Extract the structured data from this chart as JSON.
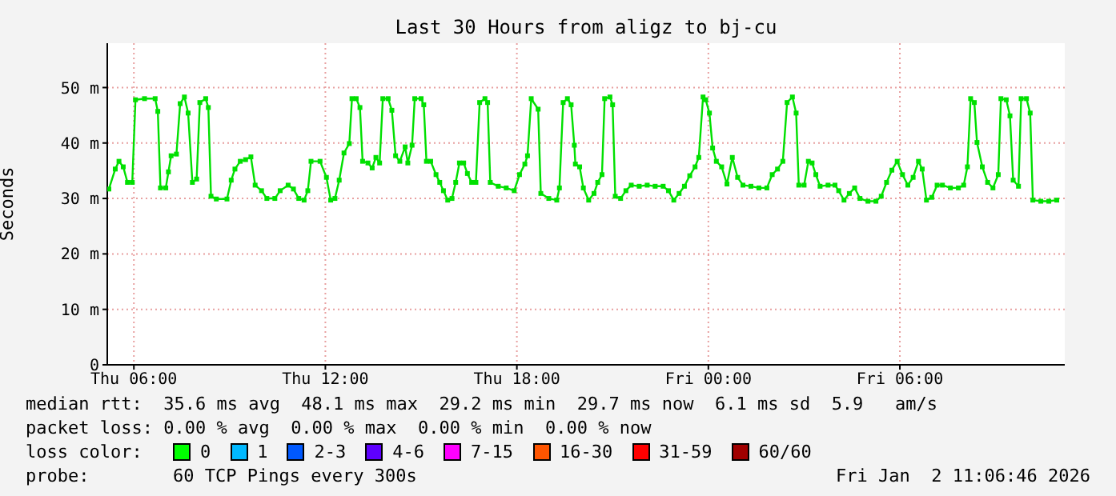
{
  "chart_data": {
    "type": "line",
    "title": "Last 30 Hours from aligz to bj-cu",
    "ylabel": "Seconds",
    "xlim": [
      "2026-01-01T05:10",
      "2026-01-02T11:10"
    ],
    "xticks": [
      {
        "value": "2026-01-01T06:00",
        "label": "Thu 06:00"
      },
      {
        "value": "2026-01-01T12:00",
        "label": "Thu 12:00"
      },
      {
        "value": "2026-01-01T18:00",
        "label": "Thu 18:00"
      },
      {
        "value": "2026-01-02T00:00",
        "label": "Fri 00:00"
      },
      {
        "value": "2026-01-02T06:00",
        "label": "Fri 06:00"
      }
    ],
    "ylim": [
      0,
      58
    ],
    "yticks": [
      0,
      {
        "value": 10,
        "label": "10 m"
      },
      {
        "value": 20,
        "label": "20 m"
      },
      {
        "value": 30,
        "label": "30 m"
      },
      {
        "value": 40,
        "label": "40 m"
      },
      {
        "value": 50,
        "label": "50 m"
      }
    ],
    "grid": true,
    "legend": false,
    "marker": "square",
    "line_style": "solid",
    "series": [
      {
        "color": "#00e000",
        "x": [
          "2026-01-01T05:13",
          "2026-01-01T05:25",
          "2026-01-01T05:32",
          "2026-01-01T05:40",
          "2026-01-01T05:48",
          "2026-01-01T05:57",
          "2026-01-01T06:03",
          "2026-01-01T06:20",
          "2026-01-01T06:40",
          "2026-01-01T06:45",
          "2026-01-01T06:50",
          "2026-01-01T07:00",
          "2026-01-01T07:05",
          "2026-01-01T07:10",
          "2026-01-01T07:20",
          "2026-01-01T07:27",
          "2026-01-01T07:35",
          "2026-01-01T07:42",
          "2026-01-01T07:50",
          "2026-01-01T07:58",
          "2026-01-01T08:04",
          "2026-01-01T08:15",
          "2026-01-01T08:20",
          "2026-01-01T08:25",
          "2026-01-01T08:35",
          "2026-01-01T08:55",
          "2026-01-01T09:03",
          "2026-01-01T09:10",
          "2026-01-01T09:20",
          "2026-01-01T09:30",
          "2026-01-01T09:40",
          "2026-01-01T09:48",
          "2026-01-01T10:00",
          "2026-01-01T10:10",
          "2026-01-01T10:25",
          "2026-01-01T10:35",
          "2026-01-01T10:50",
          "2026-01-01T11:00",
          "2026-01-01T11:10",
          "2026-01-01T11:20",
          "2026-01-01T11:27",
          "2026-01-01T11:33",
          "2026-01-01T11:50",
          "2026-01-01T12:02",
          "2026-01-01T12:10",
          "2026-01-01T12:18",
          "2026-01-01T12:26",
          "2026-01-01T12:35",
          "2026-01-01T12:45",
          "2026-01-01T12:50",
          "2026-01-01T12:58",
          "2026-01-01T13:05",
          "2026-01-01T13:10",
          "2026-01-01T13:20",
          "2026-01-01T13:28",
          "2026-01-01T13:35",
          "2026-01-01T13:42",
          "2026-01-01T13:48",
          "2026-01-01T13:58",
          "2026-01-01T14:05",
          "2026-01-01T14:12",
          "2026-01-01T14:20",
          "2026-01-01T14:30",
          "2026-01-01T14:35",
          "2026-01-01T14:43",
          "2026-01-01T14:48",
          "2026-01-01T15:00",
          "2026-01-01T15:05",
          "2026-01-01T15:10",
          "2026-01-01T15:18",
          "2026-01-01T15:28",
          "2026-01-01T15:35",
          "2026-01-01T15:42",
          "2026-01-01T15:50",
          "2026-01-01T15:58",
          "2026-01-01T16:05",
          "2026-01-01T16:12",
          "2026-01-01T16:20",
          "2026-01-01T16:27",
          "2026-01-01T16:35",
          "2026-01-01T16:43",
          "2026-01-01T16:50",
          "2026-01-01T17:00",
          "2026-01-01T17:05",
          "2026-01-01T17:10",
          "2026-01-01T17:25",
          "2026-01-01T17:40",
          "2026-01-01T17:55",
          "2026-01-01T18:05",
          "2026-01-01T18:15",
          "2026-01-01T18:20",
          "2026-01-01T18:27",
          "2026-01-01T18:40",
          "2026-01-01T18:45",
          "2026-01-01T19:00",
          "2026-01-01T19:15",
          "2026-01-01T19:20",
          "2026-01-01T19:27",
          "2026-01-01T19:35",
          "2026-01-01T19:42",
          "2026-01-01T19:48",
          "2026-01-01T19:50",
          "2026-01-01T19:58",
          "2026-01-01T20:05",
          "2026-01-01T20:15",
          "2026-01-01T20:25",
          "2026-01-01T20:32",
          "2026-01-01T20:40",
          "2026-01-01T20:45",
          "2026-01-01T20:55",
          "2026-01-01T21:00",
          "2026-01-01T21:05",
          "2026-01-01T21:15",
          "2026-01-01T21:25",
          "2026-01-01T21:35",
          "2026-01-01T21:50",
          "2026-01-01T22:05",
          "2026-01-01T22:20",
          "2026-01-01T22:35",
          "2026-01-01T22:45",
          "2026-01-01T22:55",
          "2026-01-01T23:05",
          "2026-01-01T23:15",
          "2026-01-01T23:25",
          "2026-01-01T23:35",
          "2026-01-01T23:42",
          "2026-01-01T23:50",
          "2026-01-01T23:55",
          "2026-01-02T00:02",
          "2026-01-02T00:08",
          "2026-01-02T00:15",
          "2026-01-02T00:25",
          "2026-01-02T00:35",
          "2026-01-02T00:45",
          "2026-01-02T00:55",
          "2026-01-02T01:05",
          "2026-01-02T01:20",
          "2026-01-02T01:35",
          "2026-01-02T01:50",
          "2026-01-02T02:00",
          "2026-01-02T02:10",
          "2026-01-02T02:20",
          "2026-01-02T02:28",
          "2026-01-02T02:38",
          "2026-01-02T02:45",
          "2026-01-02T02:50",
          "2026-01-02T03:00",
          "2026-01-02T03:08",
          "2026-01-02T03:15",
          "2026-01-02T03:22",
          "2026-01-02T03:30",
          "2026-01-02T03:45",
          "2026-01-02T03:58",
          "2026-01-02T04:05",
          "2026-01-02T04:15",
          "2026-01-02T04:25",
          "2026-01-02T04:35",
          "2026-01-02T04:45",
          "2026-01-02T05:00",
          "2026-01-02T05:15",
          "2026-01-02T05:25",
          "2026-01-02T05:35",
          "2026-01-02T05:45",
          "2026-01-02T05:55",
          "2026-01-02T06:05",
          "2026-01-02T06:15",
          "2026-01-02T06:25",
          "2026-01-02T06:35",
          "2026-01-02T06:42",
          "2026-01-02T06:50",
          "2026-01-02T07:00",
          "2026-01-02T07:10",
          "2026-01-02T07:20",
          "2026-01-02T07:35",
          "2026-01-02T07:50",
          "2026-01-02T08:00",
          "2026-01-02T08:07",
          "2026-01-02T08:13",
          "2026-01-02T08:20",
          "2026-01-02T08:25",
          "2026-01-02T08:35",
          "2026-01-02T08:45",
          "2026-01-02T08:55",
          "2026-01-02T09:05",
          "2026-01-02T09:10",
          "2026-01-02T09:20",
          "2026-01-02T09:27",
          "2026-01-02T09:33",
          "2026-01-02T09:43",
          "2026-01-02T09:48",
          "2026-01-02T09:58",
          "2026-01-02T10:05",
          "2026-01-02T10:10",
          "2026-01-02T10:25",
          "2026-01-02T10:40",
          "2026-01-02T10:55"
        ],
        "values": [
          31.7,
          35.3,
          36.7,
          35.7,
          32.9,
          32.9,
          47.8,
          48,
          48,
          45.7,
          31.9,
          31.9,
          34.8,
          37.7,
          38,
          47.1,
          48.3,
          45.4,
          32.9,
          33.5,
          47.3,
          48,
          46.4,
          30.4,
          29.9,
          29.9,
          33.3,
          35.3,
          36.7,
          37,
          37.5,
          32.4,
          31.4,
          30,
          30,
          31.4,
          32.4,
          31.7,
          30,
          29.7,
          31.4,
          36.7,
          36.7,
          33.8,
          29.7,
          30,
          33.3,
          38.2,
          39.9,
          48,
          48,
          46.4,
          36.7,
          36.4,
          35.5,
          37.4,
          36.4,
          48,
          48,
          45.9,
          37.7,
          36.7,
          39.3,
          36.4,
          39.6,
          48,
          48,
          46.9,
          36.7,
          36.7,
          34.3,
          32.9,
          31.4,
          29.7,
          30,
          32.9,
          36.4,
          36.4,
          34.5,
          32.9,
          32.9,
          47.3,
          48,
          47.3,
          32.9,
          32.2,
          31.9,
          31.4,
          34.3,
          36.2,
          37.7,
          48,
          46.1,
          30.9,
          30,
          29.7,
          31.9,
          47.3,
          48,
          46.9,
          39.6,
          36.2,
          35.7,
          31.9,
          29.7,
          30.9,
          32.9,
          34.3,
          48,
          48.3,
          46.9,
          30.4,
          30,
          31.4,
          32.4,
          32.2,
          32.4,
          32.2,
          32.2,
          31.4,
          29.7,
          30.9,
          32.2,
          34.1,
          35.7,
          37.4,
          48.3,
          47.8,
          45.4,
          39.1,
          36.7,
          35.7,
          32.6,
          37.4,
          33.8,
          32.4,
          32.2,
          31.9,
          31.9,
          34.3,
          35.3,
          36.7,
          47.3,
          48.3,
          45.4,
          32.4,
          32.4,
          36.7,
          36.4,
          34.3,
          32.2,
          32.4,
          32.4,
          31.4,
          29.7,
          30.9,
          31.9,
          30,
          29.5,
          29.5,
          30.4,
          32.9,
          35.1,
          36.7,
          34.3,
          32.4,
          33.8,
          36.7,
          35.3,
          29.7,
          30.2,
          32.4,
          32.4,
          31.9,
          31.9,
          32.4,
          35.7,
          48,
          47.3,
          40.1,
          35.7,
          32.9,
          31.9,
          34.3,
          48,
          47.8,
          44.9,
          33.3,
          32.2,
          48,
          48,
          45.4,
          29.7,
          29.5,
          29.5,
          29.7
        ]
      }
    ],
    "annotations": [
      "median rtt:  35.6 ms avg  48.1 ms max  29.2 ms min  29.7 ms now  6.1 ms sd  5.9   am/s",
      "packet loss: 0.00 % avg  0.00 % max  0.00 % min  0.00 % now",
      "loss color:",
      "0",
      "1",
      "2-3",
      "4-6",
      "7-15",
      "16-30",
      "31-59",
      "60/60",
      "probe:",
      "60 TCP Pings every 300s",
      "Fri Jan  2 11:06:46 2026"
    ]
  }
}
